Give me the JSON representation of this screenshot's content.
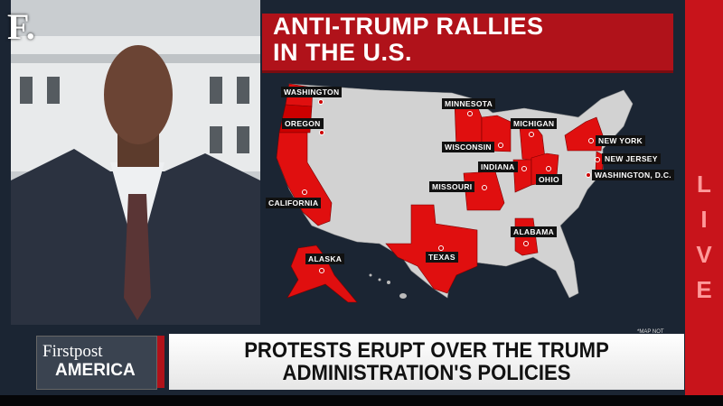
{
  "channel_logo": "F.",
  "map": {
    "title_lines": [
      "ANTI-TRUMP RALLIES",
      "IN THE U.S."
    ],
    "highlight_color": "#e00f0f",
    "states": [
      "WASHINGTON",
      "OREGON",
      "CALIFORNIA",
      "MINNESOTA",
      "WISCONSIN",
      "MICHIGAN",
      "INDIANA",
      "OHIO",
      "NEW YORK",
      "NEW JERSEY",
      "WASHINGTON, D.C.",
      "MISSOURI",
      "TEXAS",
      "ALABAMA",
      "ALASKA"
    ],
    "note": "*MAP NOT"
  },
  "live_label": "LIVE",
  "lower_third": {
    "brand_top": "Firstpost",
    "brand_bottom": "AMERICA",
    "headline_lines": [
      "PROTESTS ERUPT OVER THE TRUMP",
      "ADMINISTRATION'S POLICIES"
    ]
  }
}
